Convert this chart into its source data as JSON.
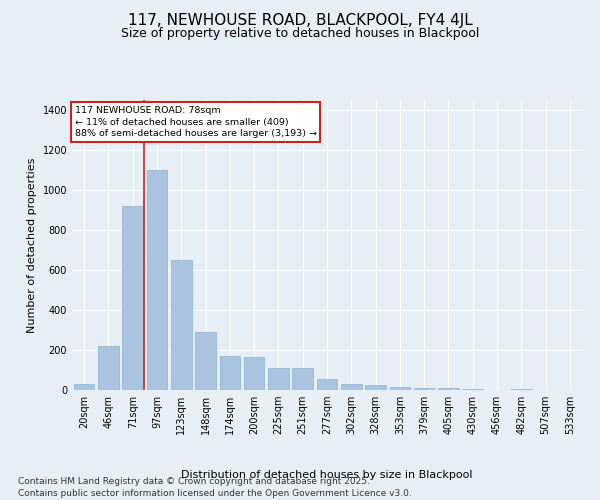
{
  "title": "117, NEWHOUSE ROAD, BLACKPOOL, FY4 4JL",
  "subtitle": "Size of property relative to detached houses in Blackpool",
  "xlabel": "Distribution of detached houses by size in Blackpool",
  "ylabel": "Number of detached properties",
  "categories": [
    "20sqm",
    "46sqm",
    "71sqm",
    "97sqm",
    "123sqm",
    "148sqm",
    "174sqm",
    "200sqm",
    "225sqm",
    "251sqm",
    "277sqm",
    "302sqm",
    "328sqm",
    "353sqm",
    "379sqm",
    "405sqm",
    "430sqm",
    "456sqm",
    "482sqm",
    "507sqm",
    "533sqm"
  ],
  "values": [
    30,
    220,
    920,
    1100,
    650,
    290,
    170,
    165,
    110,
    110,
    55,
    30,
    25,
    15,
    12,
    10,
    4,
    0,
    5,
    0,
    0
  ],
  "bar_color": "#aac4df",
  "bar_edge_color": "#8ab4d4",
  "bg_color": "#e8eef5",
  "grid_color": "#ffffff",
  "vline_color": "#cc2222",
  "annotation_box_text": "117 NEWHOUSE ROAD: 78sqm\n← 11% of detached houses are smaller (409)\n88% of semi-detached houses are larger (3,193) →",
  "annotation_box_color": "#cc2222",
  "annotation_box_bg": "#ffffff",
  "ylim": [
    0,
    1450
  ],
  "yticks": [
    0,
    200,
    400,
    600,
    800,
    1000,
    1200,
    1400
  ],
  "footer": "Contains HM Land Registry data © Crown copyright and database right 2025.\nContains public sector information licensed under the Open Government Licence v3.0.",
  "title_fontsize": 11,
  "subtitle_fontsize": 9,
  "label_fontsize": 8,
  "tick_fontsize": 7,
  "footer_fontsize": 6.5
}
